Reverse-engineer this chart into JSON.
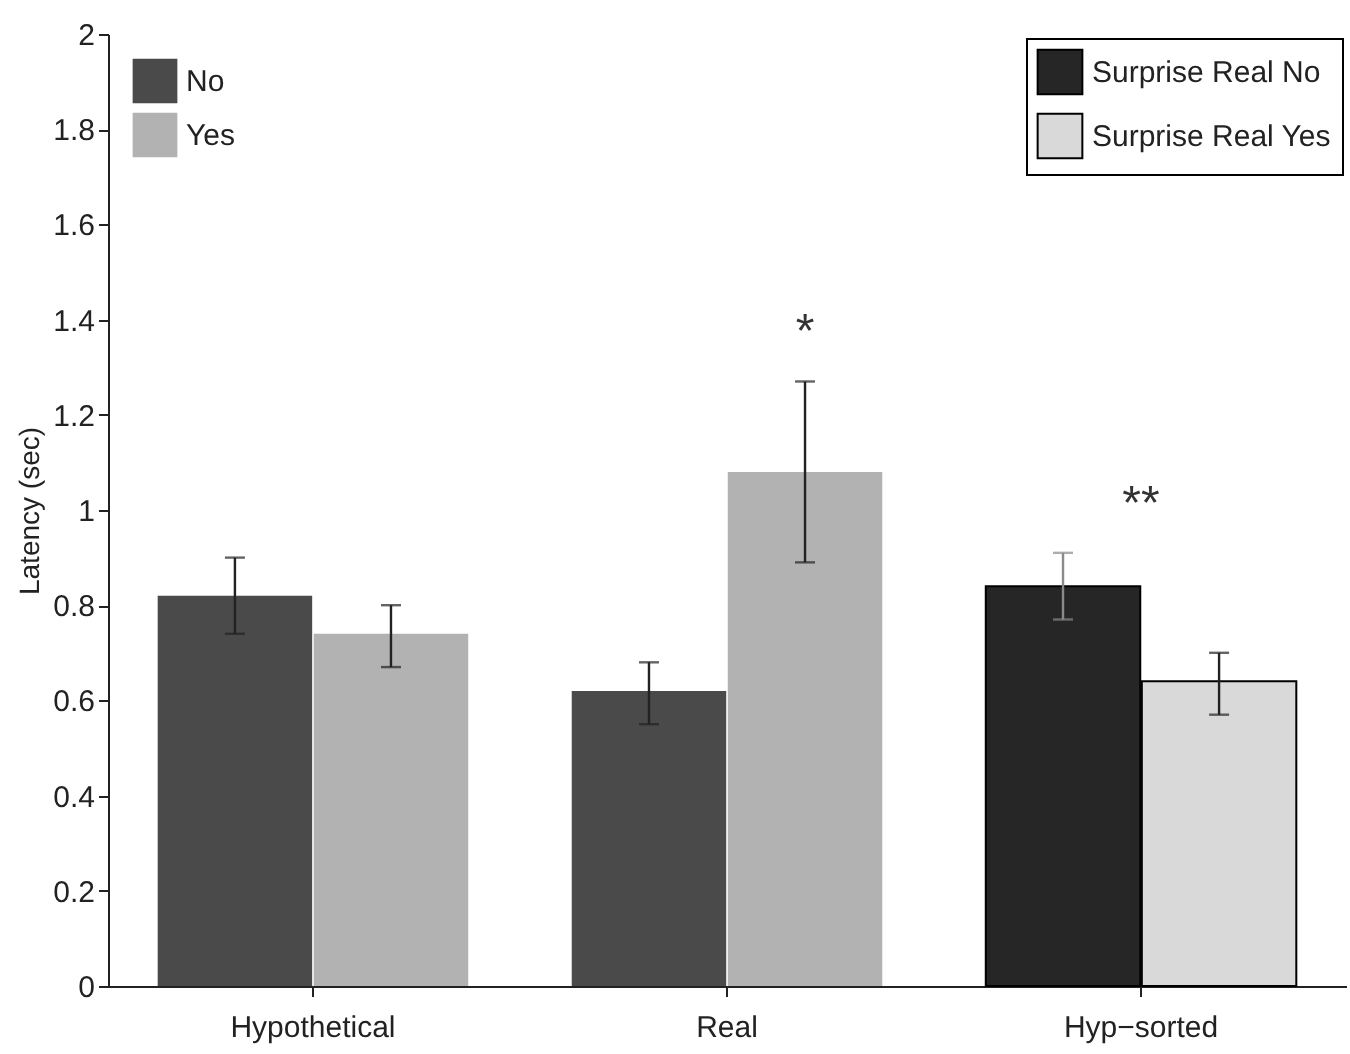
{
  "chart_data": {
    "type": "bar",
    "ylabel": "Latency (sec)",
    "categories": [
      "Hypothetical",
      "Real",
      "Hyp−sorted"
    ],
    "series": [
      {
        "name": "No",
        "color": "#4a4a4a",
        "values": [
          0.82,
          0.62,
          null
        ],
        "errors": [
          [
            0.74,
            0.9
          ],
          [
            0.55,
            0.68
          ],
          null
        ]
      },
      {
        "name": "Yes",
        "color": "#b2b2b2",
        "values": [
          0.74,
          1.08,
          null
        ],
        "errors": [
          [
            0.67,
            0.8
          ],
          [
            0.89,
            1.27
          ],
          null
        ]
      },
      {
        "name": "Surprise Real No",
        "color": "#262626",
        "values": [
          null,
          null,
          0.84
        ],
        "errors": [
          null,
          null,
          [
            0.77,
            0.91
          ]
        ]
      },
      {
        "name": "Surprise Real Yes",
        "color": "#d9d9d9",
        "values": [
          null,
          null,
          0.64
        ],
        "errors": [
          null,
          null,
          [
            0.57,
            0.7
          ]
        ]
      }
    ],
    "ylim": [
      0,
      2
    ],
    "yticks": [
      0,
      0.2,
      0.4,
      0.6,
      0.8,
      1,
      1.2,
      1.4,
      1.6,
      1.8,
      2
    ],
    "annotations": [
      "*",
      "**"
    ],
    "grid": false,
    "legend": [
      "top left",
      "top right"
    ]
  }
}
